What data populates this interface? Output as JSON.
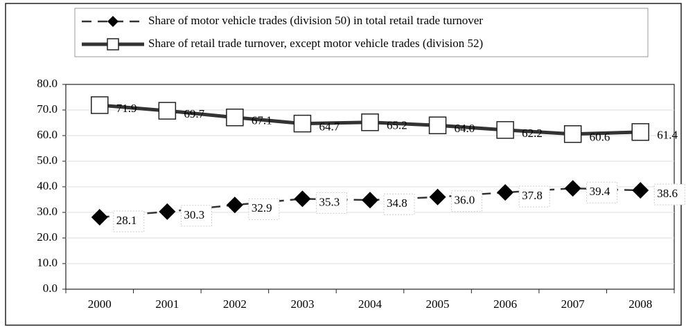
{
  "chart_data": {
    "type": "line",
    "categories": [
      "2000",
      "2001",
      "2002",
      "2003",
      "2004",
      "2005",
      "2006",
      "2007",
      "2008"
    ],
    "series": [
      {
        "name": "Share of motor vehicle trades (division 50) in total retail trade turnover",
        "color": "#333333",
        "values": [
          28.1,
          30.3,
          32.9,
          35.3,
          34.8,
          36.0,
          37.8,
          39.4,
          38.6
        ],
        "value_labels": [
          "28.1",
          "30.3",
          "32.9",
          "35.3",
          "34.8",
          "36.0",
          "37.8",
          "39.4",
          "38.6"
        ]
      },
      {
        "name": "Share of retail trade turnover, except motor vehicle trades (division 52)",
        "color": "#333333",
        "values": [
          71.9,
          69.7,
          67.1,
          64.7,
          65.2,
          64.0,
          62.2,
          60.6,
          61.4
        ],
        "value_labels": [
          "71.9",
          "69.7",
          "67.1",
          "64.7",
          "65.2",
          "64.0",
          "62.2",
          "60.6",
          "61.4"
        ]
      }
    ],
    "ylim": [
      0,
      80
    ],
    "yticks": [
      {
        "value": 0,
        "label": "0.0"
      },
      {
        "value": 10,
        "label": "10.0"
      },
      {
        "value": 20,
        "label": "20.0"
      },
      {
        "value": 30,
        "label": "30.0"
      },
      {
        "value": 40,
        "label": "40.0"
      },
      {
        "value": 50,
        "label": "50.0"
      },
      {
        "value": 60,
        "label": "60.0"
      },
      {
        "value": 70,
        "label": "70.0"
      },
      {
        "value": 80,
        "label": "80.0"
      }
    ],
    "grid": true,
    "legend": "top"
  }
}
